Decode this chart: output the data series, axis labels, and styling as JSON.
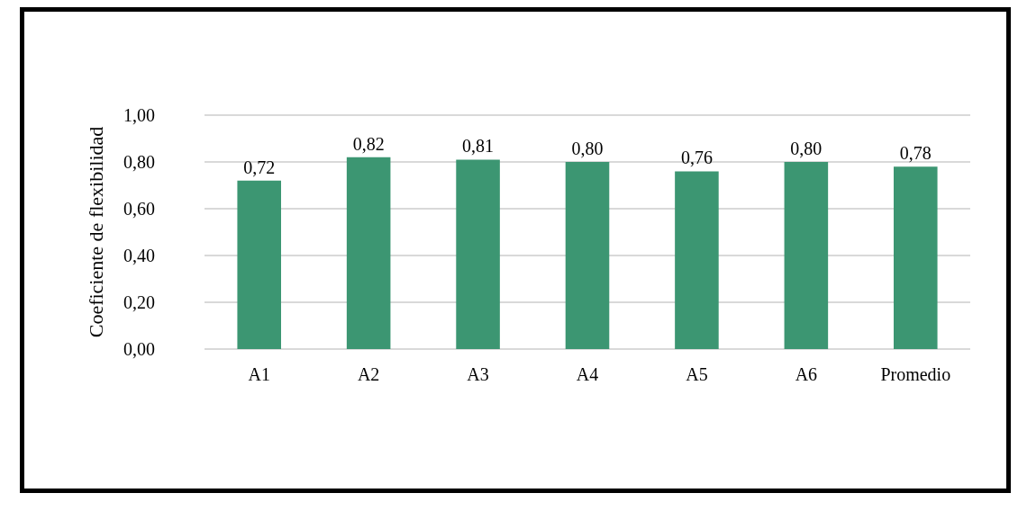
{
  "chart_data": {
    "type": "bar",
    "ylabel": "Coeficiente de flexibilidad",
    "categories": [
      "A1",
      "A2",
      "A3",
      "A4",
      "A5",
      "A6",
      "Promedio"
    ],
    "values": [
      0.72,
      0.82,
      0.81,
      0.8,
      0.76,
      0.8,
      0.78
    ],
    "value_labels": [
      "0,72",
      "0,82",
      "0,81",
      "0,80",
      "0,76",
      "0,80",
      "0,78"
    ],
    "color": "#3c9672",
    "ylim": [
      0,
      1
    ],
    "yticks": [
      {
        "value": 0,
        "label": "0,00"
      },
      {
        "value": 0.2,
        "label": "0,20"
      },
      {
        "value": 0.4,
        "label": "0,40"
      },
      {
        "value": 0.6,
        "label": "0,60"
      },
      {
        "value": 0.8,
        "label": "0,80"
      },
      {
        "value": 1,
        "label": "1,00"
      }
    ],
    "grid": "y"
  }
}
